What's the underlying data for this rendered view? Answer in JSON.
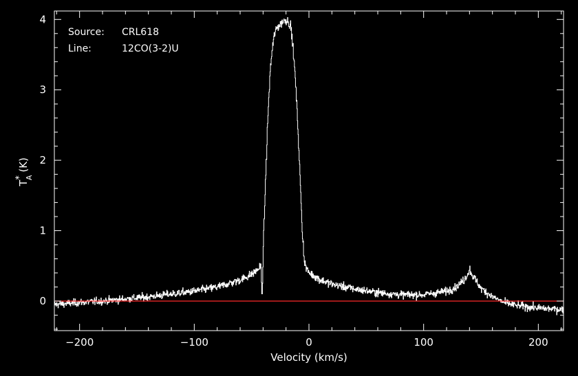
{
  "colors": {
    "background": "#000000",
    "frame": "#ffffff",
    "spectrum": "#ffffff",
    "baseline": "#ff2a2a"
  },
  "annotations": {
    "source_label": "Source:",
    "source_value": "CRL618",
    "line_label": "Line:",
    "line_value": "12CO(3-2)U"
  },
  "chart_data": {
    "type": "line",
    "xlabel": "Velocity (km/s)",
    "ylabel": {
      "main": "T",
      "superscript": "*",
      "subscript": "A",
      "unit": "(K)"
    },
    "xlim": [
      -222,
      222
    ],
    "ylim": [
      -0.42,
      4.12
    ],
    "x_ticks": [
      -200,
      -100,
      0,
      100,
      200
    ],
    "x_tick_labels": [
      "−200",
      "−100",
      "0",
      "100",
      "200"
    ],
    "y_ticks": [
      0,
      1,
      2,
      3,
      4
    ],
    "y_tick_labels": [
      "0",
      "1",
      "2",
      "3",
      "4"
    ],
    "x_minor_step": 20,
    "y_minor_step": 0.2,
    "grid": false,
    "legend": "none",
    "baseline": 0,
    "series": [
      {
        "style": "histogram-step",
        "noise_rms": 0.06,
        "x": [
          -222,
          -200,
          -180,
          -160,
          -140,
          -120,
          -100,
          -80,
          -60,
          -50,
          -44,
          -42,
          -41,
          -40,
          -38,
          -36,
          -34,
          -32,
          -30,
          -28,
          -26,
          -24,
          -22,
          -20,
          -18,
          -16,
          -14,
          -12,
          -10,
          -8,
          -6,
          -4,
          -2,
          0,
          10,
          20,
          40,
          60,
          80,
          100,
          120,
          130,
          135,
          138,
          140,
          142,
          145,
          150,
          160,
          170,
          180,
          200,
          222
        ],
        "y": [
          -0.05,
          -0.02,
          0.0,
          0.03,
          0.06,
          0.1,
          0.14,
          0.2,
          0.3,
          0.38,
          0.46,
          0.5,
          0.0,
          0.75,
          1.7,
          2.6,
          3.25,
          3.6,
          3.8,
          3.88,
          3.92,
          3.95,
          3.98,
          4.0,
          3.97,
          3.9,
          3.6,
          3.15,
          2.55,
          1.8,
          1.0,
          0.55,
          0.45,
          0.4,
          0.3,
          0.24,
          0.17,
          0.12,
          0.09,
          0.09,
          0.14,
          0.22,
          0.3,
          0.38,
          0.45,
          0.38,
          0.3,
          0.18,
          0.06,
          -0.02,
          -0.06,
          -0.1,
          -0.12
        ]
      }
    ]
  }
}
